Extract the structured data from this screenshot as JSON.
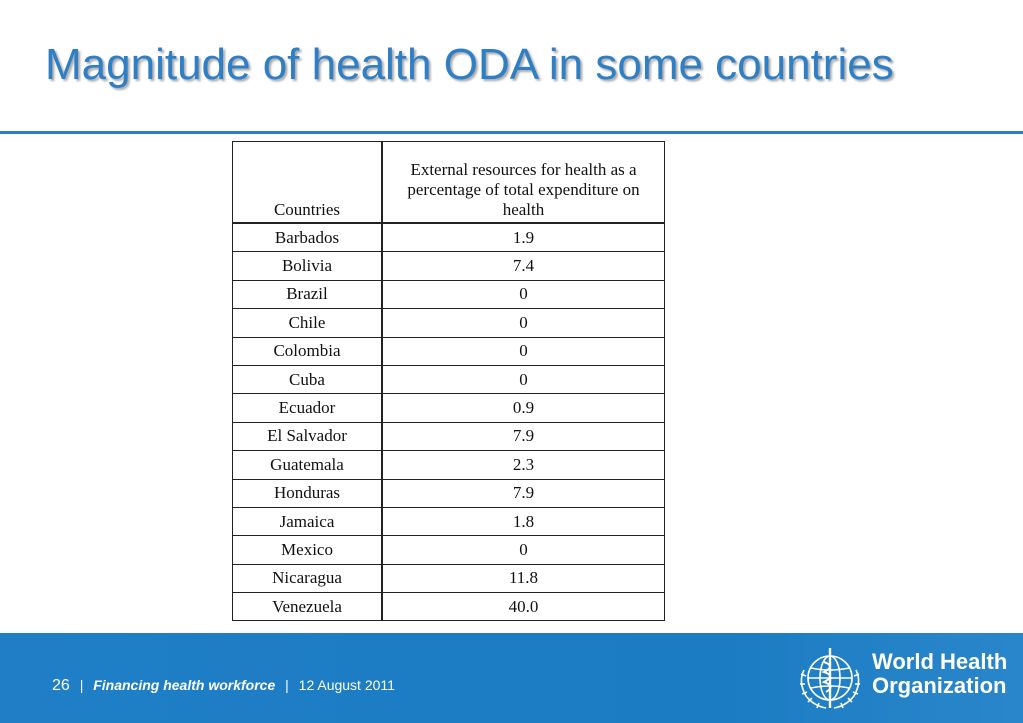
{
  "slide": {
    "title": "Magnitude of health ODA in some countries"
  },
  "table": {
    "headers": [
      "Countries",
      "External resources for health as a percentage of total expenditure on health"
    ],
    "rows": [
      [
        "Barbados",
        "1.9"
      ],
      [
        "Bolivia",
        "7.4"
      ],
      [
        "Brazil",
        "0"
      ],
      [
        "Chile",
        "0"
      ],
      [
        "Colombia",
        "0"
      ],
      [
        "Cuba",
        "0"
      ],
      [
        "Ecuador",
        "0.9"
      ],
      [
        "El Salvador",
        "7.9"
      ],
      [
        "Guatemala",
        "2.3"
      ],
      [
        "Honduras",
        "7.9"
      ],
      [
        "Jamaica",
        "1.8"
      ],
      [
        "Mexico",
        "0"
      ],
      [
        "Nicaragua",
        "11.8"
      ],
      [
        "Venezuela",
        "40.0"
      ]
    ]
  },
  "footer": {
    "page_number": "26",
    "separator": "|",
    "presentation_title": "Financing health workforce",
    "separator2": "|",
    "date": "12 August 2011",
    "logo_line1": "World Health",
    "logo_line2": "Organization",
    "logo_icon": "who-emblem-icon"
  },
  "colors": {
    "title": "#2f7fc6",
    "footer_bg": "#1f7ec6",
    "rule": "#2f7fc6"
  }
}
